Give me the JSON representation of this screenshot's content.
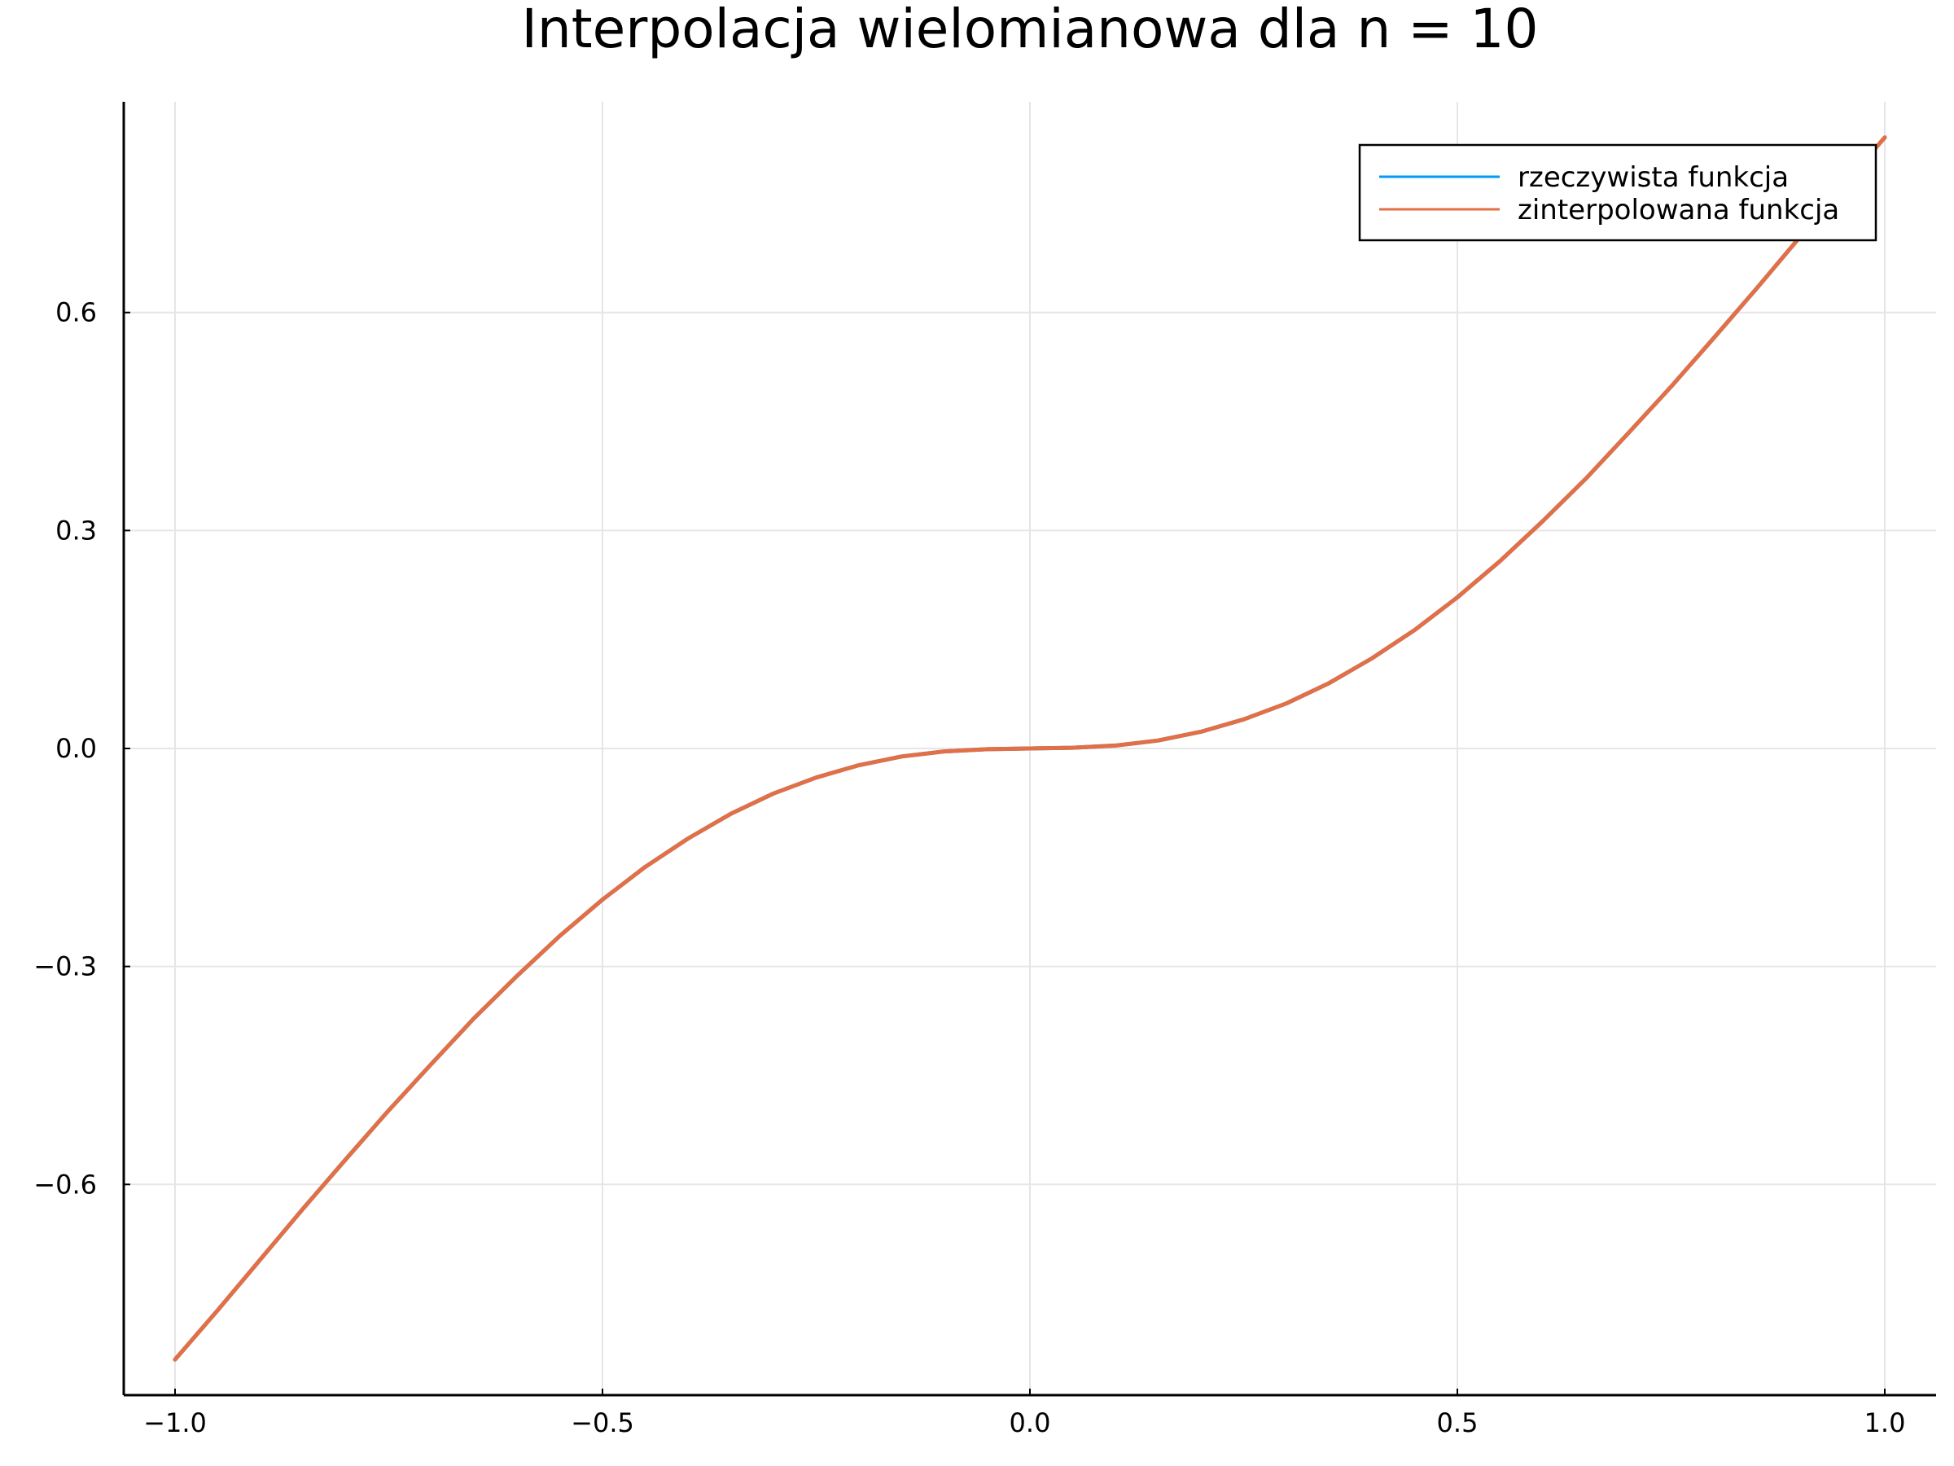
{
  "chart_data": {
    "type": "line",
    "title": "Interpolacja wielomianowa dla n = 10",
    "xlabel": "",
    "ylabel": "",
    "xlim": [
      -1.06,
      1.06
    ],
    "ylim": [
      -0.89,
      0.89
    ],
    "xticks": [
      -1.0,
      -0.5,
      0.0,
      0.5,
      1.0
    ],
    "xtick_labels": [
      "−1.0",
      "−0.5",
      "0.0",
      "0.5",
      "1.0"
    ],
    "yticks": [
      -0.6,
      -0.3,
      0.0,
      0.3,
      0.6
    ],
    "ytick_labels": [
      "−0.6",
      "−0.3",
      "0.0",
      "0.3",
      "0.6"
    ],
    "grid": true,
    "legend_position": "top-right",
    "series": [
      {
        "name": "rzeczywista funkcja",
        "color": "#009af9",
        "x": [
          -1.0,
          -0.95,
          -0.9,
          -0.85,
          -0.8,
          -0.75,
          -0.7,
          -0.65,
          -0.6,
          -0.55,
          -0.5,
          -0.45,
          -0.4,
          -0.35,
          -0.3,
          -0.25,
          -0.2,
          -0.15,
          -0.1,
          -0.05,
          0.0,
          0.05,
          0.1,
          0.15,
          0.2,
          0.25,
          0.3,
          0.35,
          0.4,
          0.45,
          0.5,
          0.55,
          0.6,
          0.65,
          0.7,
          0.75,
          0.8,
          0.85,
          0.9,
          0.95,
          1.0
        ],
        "y": [
          -0.841,
          -0.773,
          -0.703,
          -0.633,
          -0.565,
          -0.498,
          -0.434,
          -0.371,
          -0.313,
          -0.258,
          -0.208,
          -0.163,
          -0.124,
          -0.09,
          -0.062,
          -0.04,
          -0.023,
          -0.011,
          -0.004,
          -0.001,
          0.0,
          0.001,
          0.004,
          0.011,
          0.023,
          0.04,
          0.062,
          0.09,
          0.124,
          0.163,
          0.208,
          0.258,
          0.313,
          0.371,
          0.434,
          0.498,
          0.565,
          0.633,
          0.703,
          0.773,
          0.841
        ]
      },
      {
        "name": "zinterpolowana funkcja",
        "color": "#e26f46",
        "x": [
          -1.0,
          -0.95,
          -0.9,
          -0.85,
          -0.8,
          -0.75,
          -0.7,
          -0.65,
          -0.6,
          -0.55,
          -0.5,
          -0.45,
          -0.4,
          -0.35,
          -0.3,
          -0.25,
          -0.2,
          -0.15,
          -0.1,
          -0.05,
          0.0,
          0.05,
          0.1,
          0.15,
          0.2,
          0.25,
          0.3,
          0.35,
          0.4,
          0.45,
          0.5,
          0.55,
          0.6,
          0.65,
          0.7,
          0.75,
          0.8,
          0.85,
          0.9,
          0.95,
          1.0
        ],
        "y": [
          -0.841,
          -0.773,
          -0.703,
          -0.633,
          -0.565,
          -0.498,
          -0.434,
          -0.371,
          -0.313,
          -0.258,
          -0.208,
          -0.163,
          -0.124,
          -0.09,
          -0.062,
          -0.04,
          -0.023,
          -0.011,
          -0.004,
          -0.001,
          0.0,
          0.001,
          0.004,
          0.011,
          0.023,
          0.04,
          0.062,
          0.09,
          0.124,
          0.163,
          0.208,
          0.258,
          0.313,
          0.371,
          0.434,
          0.498,
          0.565,
          0.633,
          0.703,
          0.773,
          0.841
        ]
      }
    ]
  }
}
